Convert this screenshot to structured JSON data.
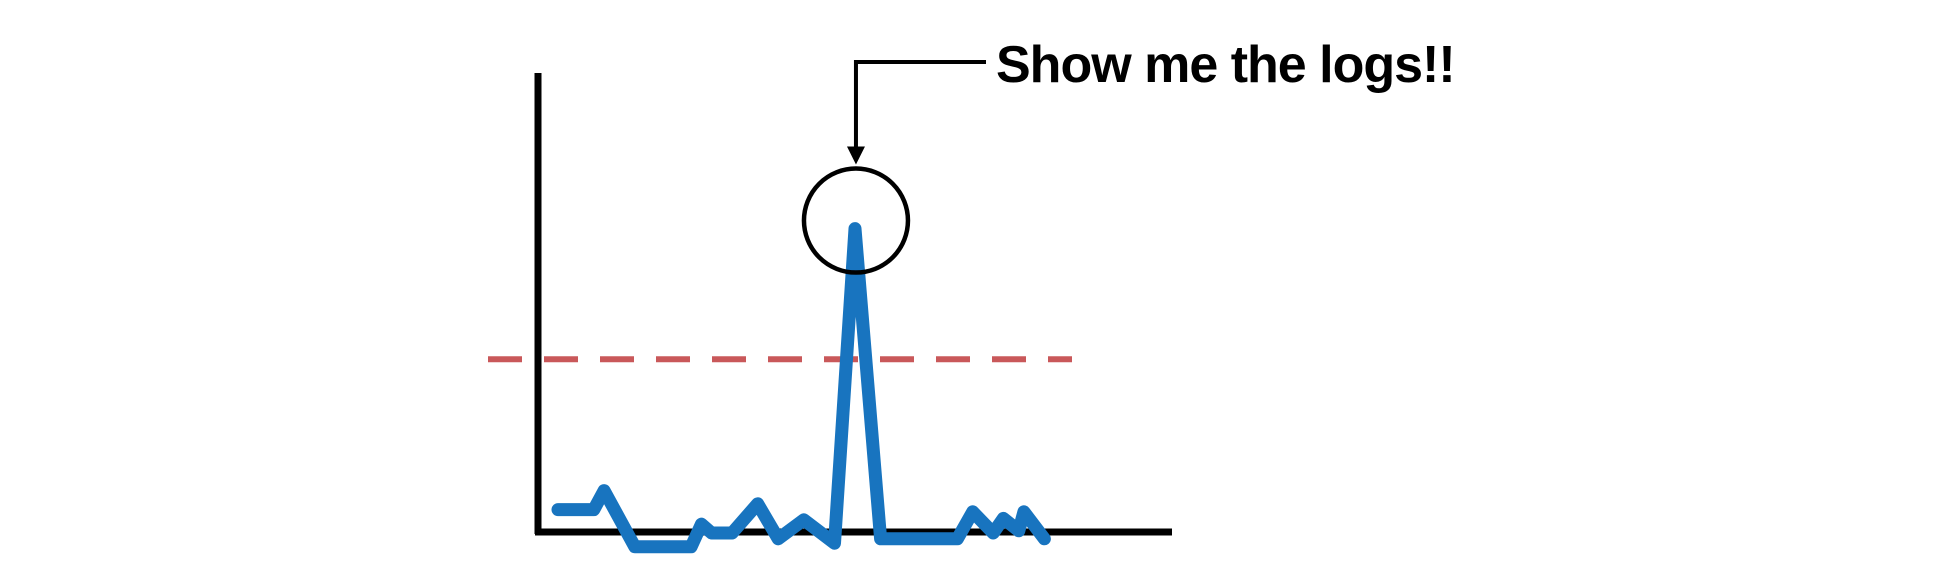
{
  "chart_data": {
    "type": "line",
    "title": "",
    "xlabel": "",
    "ylabel": "",
    "grid": false,
    "legend": "none",
    "xlim": [
      0,
      100
    ],
    "ylim": [
      0,
      100
    ],
    "x": [
      0,
      7,
      9,
      15,
      26,
      28,
      30,
      34,
      39,
      43,
      48,
      54,
      58,
      63,
      78,
      81,
      85,
      87,
      90,
      91,
      95
    ],
    "series": [
      {
        "values": [
          34.3,
          34.3,
          36.9,
          29.2,
          29.2,
          32.3,
          31.1,
          31.1,
          35.1,
          30.3,
          32.9,
          29.7,
          72.8,
          30.3,
          30.3,
          34.0,
          31.1,
          33.1,
          31.4,
          34.0,
          30.3
        ],
        "color": "#1874bf"
      }
    ],
    "threshold": {
      "value": 54.9,
      "color": "#c9585a",
      "style": "dashed"
    },
    "annotation": {
      "text": "Show me the logs!!",
      "target_index": 12,
      "marker": "circle"
    },
    "axis_color": "#000000"
  }
}
